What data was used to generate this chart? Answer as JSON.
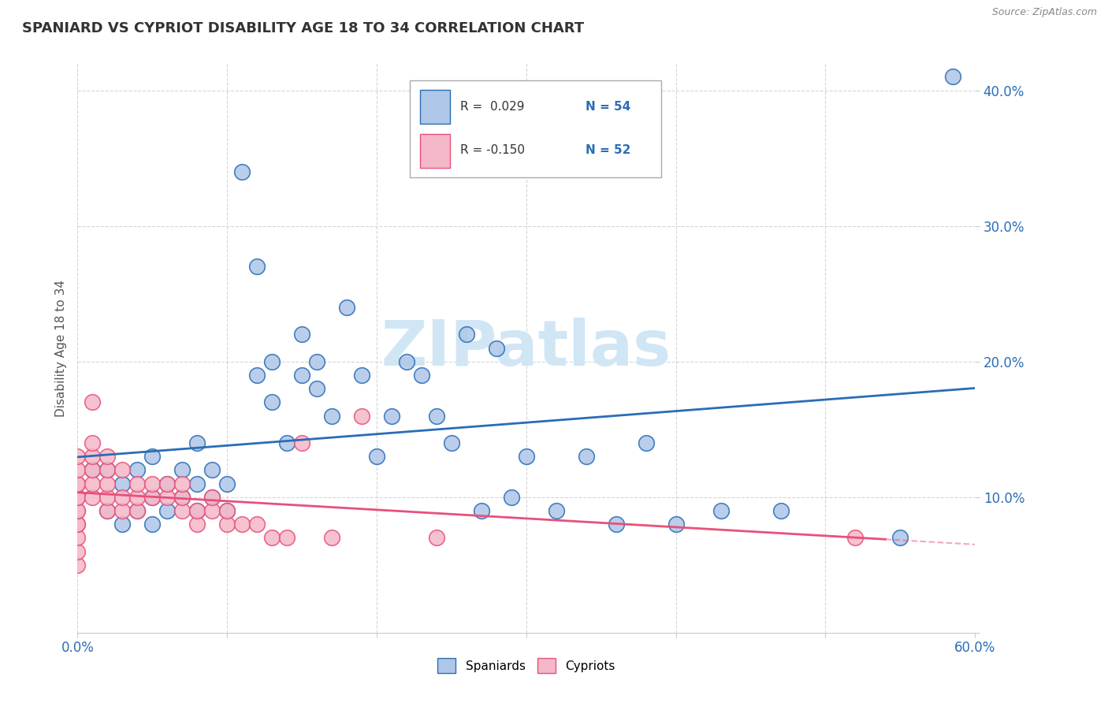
{
  "title": "SPANIARD VS CYPRIOT DISABILITY AGE 18 TO 34 CORRELATION CHART",
  "source_text": "Source: ZipAtlas.com",
  "ylabel": "Disability Age 18 to 34",
  "xlim": [
    0.0,
    0.6
  ],
  "ylim": [
    0.0,
    0.42
  ],
  "spaniard_R": 0.029,
  "spaniard_N": 54,
  "cypriot_R": -0.15,
  "cypriot_N": 52,
  "spaniard_color": "#aec6e8",
  "cypriot_color": "#f5b8c8",
  "line_spaniard_color": "#2a6db5",
  "line_cypriot_color": "#e8507a",
  "watermark_color": "#d0e6f5",
  "spaniard_x": [
    0.01,
    0.02,
    0.02,
    0.03,
    0.03,
    0.04,
    0.04,
    0.05,
    0.05,
    0.05,
    0.06,
    0.06,
    0.07,
    0.07,
    0.08,
    0.08,
    0.08,
    0.09,
    0.09,
    0.1,
    0.1,
    0.11,
    0.12,
    0.12,
    0.13,
    0.13,
    0.14,
    0.15,
    0.15,
    0.16,
    0.16,
    0.17,
    0.18,
    0.19,
    0.2,
    0.21,
    0.22,
    0.23,
    0.24,
    0.25,
    0.26,
    0.27,
    0.28,
    0.29,
    0.3,
    0.32,
    0.34,
    0.36,
    0.38,
    0.4,
    0.43,
    0.47,
    0.55,
    0.585
  ],
  "spaniard_y": [
    0.12,
    0.09,
    0.12,
    0.08,
    0.11,
    0.09,
    0.12,
    0.08,
    0.1,
    0.13,
    0.09,
    0.11,
    0.1,
    0.12,
    0.09,
    0.11,
    0.14,
    0.1,
    0.12,
    0.09,
    0.11,
    0.34,
    0.27,
    0.19,
    0.17,
    0.2,
    0.14,
    0.19,
    0.22,
    0.18,
    0.2,
    0.16,
    0.24,
    0.19,
    0.13,
    0.16,
    0.2,
    0.19,
    0.16,
    0.14,
    0.22,
    0.09,
    0.21,
    0.1,
    0.13,
    0.09,
    0.13,
    0.08,
    0.14,
    0.08,
    0.09,
    0.09,
    0.07,
    0.41
  ],
  "cypriot_x": [
    0.0,
    0.0,
    0.0,
    0.0,
    0.0,
    0.0,
    0.0,
    0.0,
    0.0,
    0.0,
    0.0,
    0.0,
    0.0,
    0.01,
    0.01,
    0.01,
    0.01,
    0.01,
    0.01,
    0.02,
    0.02,
    0.02,
    0.02,
    0.02,
    0.03,
    0.03,
    0.03,
    0.04,
    0.04,
    0.04,
    0.05,
    0.05,
    0.06,
    0.06,
    0.07,
    0.07,
    0.07,
    0.08,
    0.08,
    0.09,
    0.09,
    0.1,
    0.1,
    0.11,
    0.12,
    0.13,
    0.14,
    0.15,
    0.17,
    0.19,
    0.24,
    0.52
  ],
  "cypriot_y": [
    0.05,
    0.06,
    0.07,
    0.08,
    0.08,
    0.09,
    0.09,
    0.1,
    0.1,
    0.11,
    0.11,
    0.12,
    0.13,
    0.1,
    0.11,
    0.12,
    0.13,
    0.14,
    0.17,
    0.09,
    0.1,
    0.11,
    0.12,
    0.13,
    0.09,
    0.1,
    0.12,
    0.09,
    0.1,
    0.11,
    0.1,
    0.11,
    0.1,
    0.11,
    0.09,
    0.1,
    0.11,
    0.08,
    0.09,
    0.09,
    0.1,
    0.08,
    0.09,
    0.08,
    0.08,
    0.07,
    0.07,
    0.14,
    0.07,
    0.16,
    0.07,
    0.07
  ]
}
